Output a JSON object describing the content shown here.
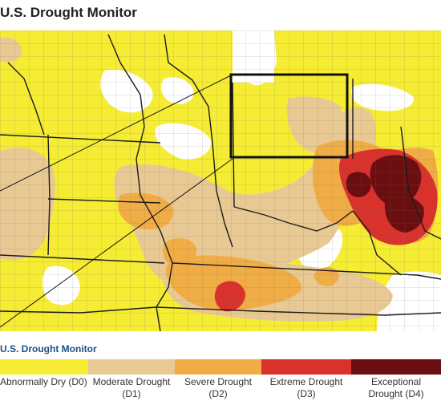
{
  "header": {
    "title": "U.S. Drought Monitor"
  },
  "legend": {
    "title": "U.S. Drought Monitor",
    "items": [
      {
        "label": "Abnormally Dry (D0)",
        "line2": "",
        "color": "#f5ec33"
      },
      {
        "label": "Moderate Drought",
        "line2": "(D1)",
        "color": "#e9c993"
      },
      {
        "label": "Severe Drought",
        "line2": "(D2)",
        "color": "#f0ac45"
      },
      {
        "label": "Extreme Drought",
        "line2": "(D3)",
        "color": "#d9322d"
      },
      {
        "label": "Exceptional",
        "line2": "Drought (D4)",
        "color": "#6b0e10"
      }
    ]
  },
  "map": {
    "none_color": "#ffffff",
    "lake_color": "#ffffff",
    "state_line_color": "#1c1c1c",
    "county_line_color": "#6b6b6b",
    "inset_frame_color": "#111111"
  }
}
